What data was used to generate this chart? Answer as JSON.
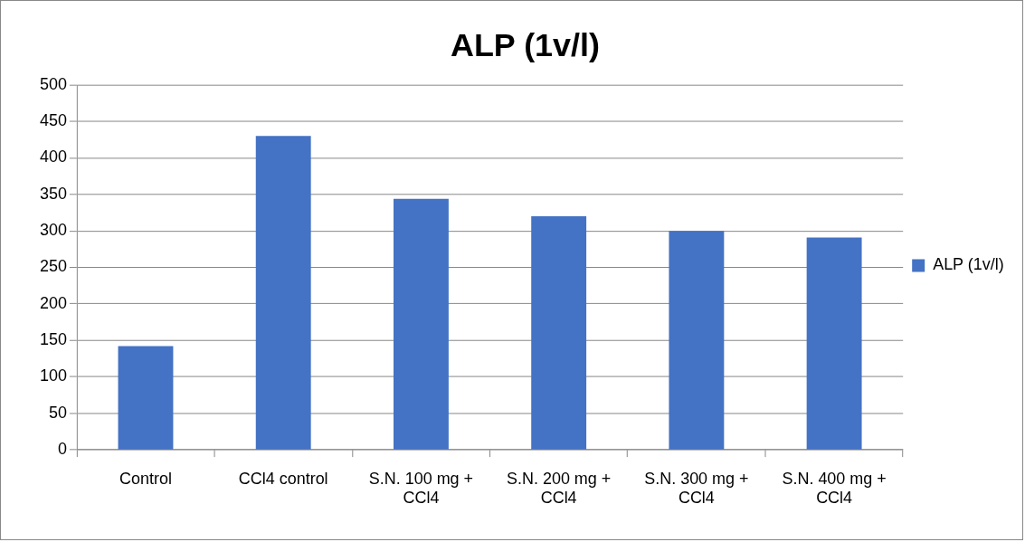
{
  "chart_data": {
    "type": "bar",
    "title": "ALP (1v/l)",
    "categories": [
      "Control",
      "CCl4 control",
      "S.N. 100 mg + CCl4",
      "S.N. 200 mg + CCl4",
      "S.N. 300 mg + CCl4",
      "S.N. 400 mg + CCl4"
    ],
    "series": [
      {
        "name": "ALP (1v/l)",
        "color": "#4472c4",
        "values": [
          142,
          430,
          344,
          320,
          300,
          291
        ]
      }
    ],
    "ylim": [
      0,
      500
    ],
    "yticks": [
      0,
      50,
      100,
      150,
      200,
      250,
      300,
      350,
      400,
      450,
      500
    ],
    "grid": "y",
    "legend": "right"
  }
}
